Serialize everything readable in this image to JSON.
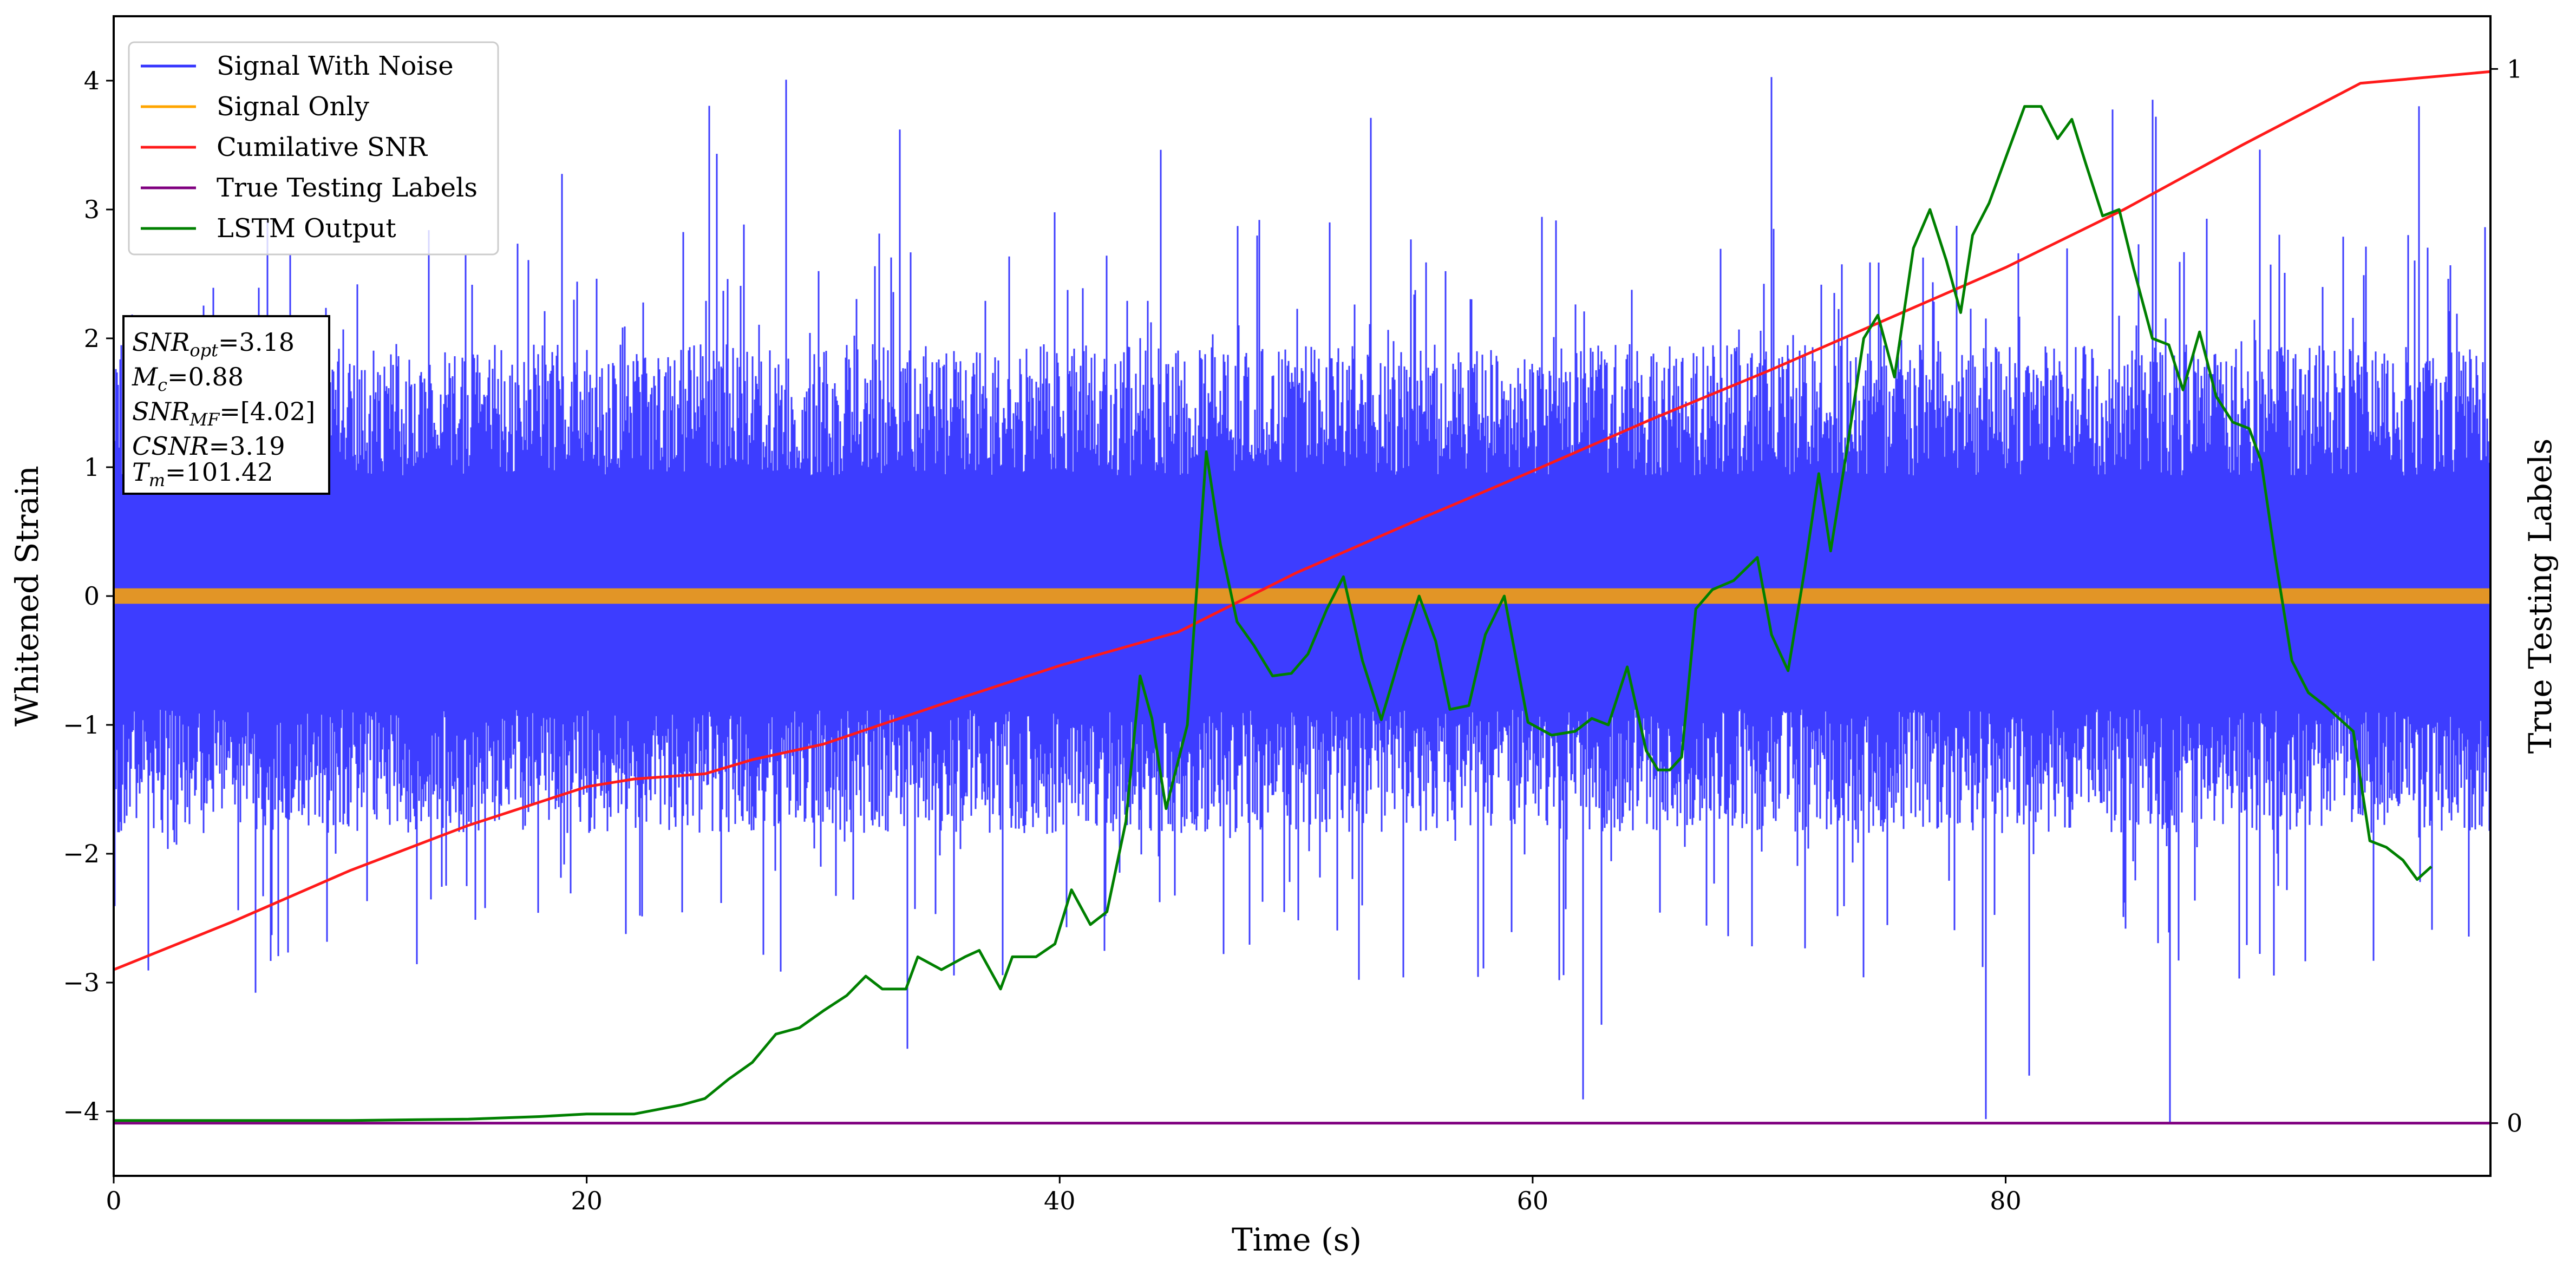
{
  "chart_data": {
    "type": "line",
    "xlabel": "Time (s)",
    "ylabel": "Whitened Strain",
    "ylabel_right": "True Testing Labels",
    "xlim": [
      0,
      100.5
    ],
    "ylim": [
      -4.5,
      4.5
    ],
    "ylim_right": [
      -0.05,
      1.05
    ],
    "x_ticks": [
      "0",
      "20",
      "40",
      "60",
      "80"
    ],
    "y_ticks": [
      "−4",
      "−3",
      "−2",
      "−1",
      "0",
      "1",
      "2",
      "3",
      "4"
    ],
    "y_ticks_right": [
      "0",
      "1"
    ],
    "grid": false,
    "legend_position": "upper-left",
    "annotation": {
      "snr_opt": {
        "label": "SNR",
        "sub": "opt",
        "value": "=3.18"
      },
      "mc": {
        "label": "M",
        "sub": "c",
        "value": "=0.88"
      },
      "snr_mf": {
        "label": "SNR",
        "sub": "MF",
        "value": "=[4.02]"
      },
      "csnr": {
        "label": "CSNR",
        "sub": "",
        "value": "=3.19"
      },
      "tm": {
        "label": "T",
        "sub": "m",
        "value": "=101.42"
      }
    },
    "series": [
      {
        "name": "Signal With Noise",
        "color": "#3333ff",
        "axis": "left",
        "kind": "noise",
        "typical_range": [
          -1.6,
          1.7
        ],
        "extreme_range": [
          -4.1,
          4.05
        ]
      },
      {
        "name": "Signal Only",
        "color": "#ffa500",
        "axis": "left",
        "kind": "band",
        "amplitude": 0.06
      },
      {
        "name": "Cumilative SNR",
        "color": "#ff1a1a",
        "axis": "left",
        "points": [
          [
            0,
            -2.9
          ],
          [
            5,
            -2.53
          ],
          [
            10,
            -2.13
          ],
          [
            15,
            -1.78
          ],
          [
            20,
            -1.48
          ],
          [
            22,
            -1.42
          ],
          [
            25,
            -1.38
          ],
          [
            27,
            -1.27
          ],
          [
            30,
            -1.15
          ],
          [
            35,
            -0.84
          ],
          [
            40,
            -0.54
          ],
          [
            45,
            -0.28
          ],
          [
            50,
            0.18
          ],
          [
            55,
            0.58
          ],
          [
            60,
            0.97
          ],
          [
            65,
            1.37
          ],
          [
            70,
            1.75
          ],
          [
            75,
            2.15
          ],
          [
            80,
            2.55
          ],
          [
            85,
            3.0
          ],
          [
            90,
            3.5
          ],
          [
            95,
            3.98
          ],
          [
            100.5,
            4.07
          ]
        ]
      },
      {
        "name": "True Testing Labels",
        "color": "#800080",
        "axis": "right",
        "points": [
          [
            0,
            0
          ],
          [
            100.5,
            0
          ]
        ]
      },
      {
        "name": "LSTM Output",
        "color": "#008000",
        "axis": "left",
        "points": [
          [
            0,
            -4.07
          ],
          [
            10,
            -4.07
          ],
          [
            15,
            -4.06
          ],
          [
            18,
            -4.04
          ],
          [
            20,
            -4.02
          ],
          [
            22,
            -4.02
          ],
          [
            24,
            -3.95
          ],
          [
            25,
            -3.9
          ],
          [
            26,
            -3.75
          ],
          [
            27,
            -3.62
          ],
          [
            28,
            -3.4
          ],
          [
            29,
            -3.35
          ],
          [
            30,
            -3.22
          ],
          [
            31,
            -3.1
          ],
          [
            31.8,
            -2.95
          ],
          [
            32.5,
            -3.05
          ],
          [
            33.5,
            -3.05
          ],
          [
            34,
            -2.8
          ],
          [
            35,
            -2.9
          ],
          [
            36,
            -2.8
          ],
          [
            36.6,
            -2.75
          ],
          [
            37.5,
            -3.05
          ],
          [
            38,
            -2.8
          ],
          [
            39,
            -2.8
          ],
          [
            39.8,
            -2.7
          ],
          [
            40.5,
            -2.28
          ],
          [
            41.3,
            -2.55
          ],
          [
            42,
            -2.45
          ],
          [
            42.8,
            -1.75
          ],
          [
            43.4,
            -0.62
          ],
          [
            43.9,
            -0.95
          ],
          [
            44.5,
            -1.65
          ],
          [
            45.4,
            -1.0
          ],
          [
            46.2,
            1.12
          ],
          [
            46.8,
            0.4
          ],
          [
            47.5,
            -0.2
          ],
          [
            48.2,
            -0.38
          ],
          [
            49,
            -0.62
          ],
          [
            49.8,
            -0.6
          ],
          [
            50.5,
            -0.45
          ],
          [
            51.3,
            -0.1
          ],
          [
            52,
            0.15
          ],
          [
            52.8,
            -0.5
          ],
          [
            53.6,
            -0.96
          ],
          [
            54.5,
            -0.4
          ],
          [
            55.2,
            0.0
          ],
          [
            55.9,
            -0.35
          ],
          [
            56.5,
            -0.88
          ],
          [
            57.3,
            -0.85
          ],
          [
            58,
            -0.3
          ],
          [
            58.8,
            0.0
          ],
          [
            59.8,
            -0.98
          ],
          [
            60.8,
            -1.08
          ],
          [
            61.8,
            -1.05
          ],
          [
            62.5,
            -0.95
          ],
          [
            63.2,
            -1.0
          ],
          [
            64,
            -0.55
          ],
          [
            64.8,
            -1.2
          ],
          [
            65.3,
            -1.35
          ],
          [
            65.8,
            -1.35
          ],
          [
            66.3,
            -1.25
          ],
          [
            66.9,
            -0.1
          ],
          [
            67.6,
            0.05
          ],
          [
            68.5,
            0.12
          ],
          [
            69.5,
            0.3
          ],
          [
            70.1,
            -0.3
          ],
          [
            70.8,
            -0.58
          ],
          [
            71.5,
            0.2
          ],
          [
            72.1,
            0.95
          ],
          [
            72.6,
            0.35
          ],
          [
            73.3,
            1.15
          ],
          [
            74,
            2.0
          ],
          [
            74.6,
            2.18
          ],
          [
            75.3,
            1.7
          ],
          [
            76.1,
            2.7
          ],
          [
            76.8,
            3.0
          ],
          [
            77.5,
            2.6
          ],
          [
            78.1,
            2.2
          ],
          [
            78.6,
            2.8
          ],
          [
            79.3,
            3.05
          ],
          [
            80.1,
            3.45
          ],
          [
            80.8,
            3.8
          ],
          [
            81.5,
            3.8
          ],
          [
            82.2,
            3.55
          ],
          [
            82.8,
            3.7
          ],
          [
            83.4,
            3.35
          ],
          [
            84.1,
            2.95
          ],
          [
            84.8,
            3.0
          ],
          [
            85.4,
            2.55
          ],
          [
            86.2,
            2.0
          ],
          [
            86.9,
            1.95
          ],
          [
            87.5,
            1.6
          ],
          [
            88.2,
            2.05
          ],
          [
            88.9,
            1.55
          ],
          [
            89.6,
            1.35
          ],
          [
            90.3,
            1.3
          ],
          [
            90.8,
            1.05
          ],
          [
            91.4,
            0.3
          ],
          [
            92.1,
            -0.5
          ],
          [
            92.8,
            -0.75
          ],
          [
            93.5,
            -0.85
          ],
          [
            94.1,
            -0.95
          ],
          [
            94.7,
            -1.05
          ],
          [
            95.4,
            -1.9
          ],
          [
            96.1,
            -1.95
          ],
          [
            96.8,
            -2.05
          ],
          [
            97.4,
            -2.2
          ],
          [
            98,
            -2.1
          ]
        ]
      }
    ]
  }
}
